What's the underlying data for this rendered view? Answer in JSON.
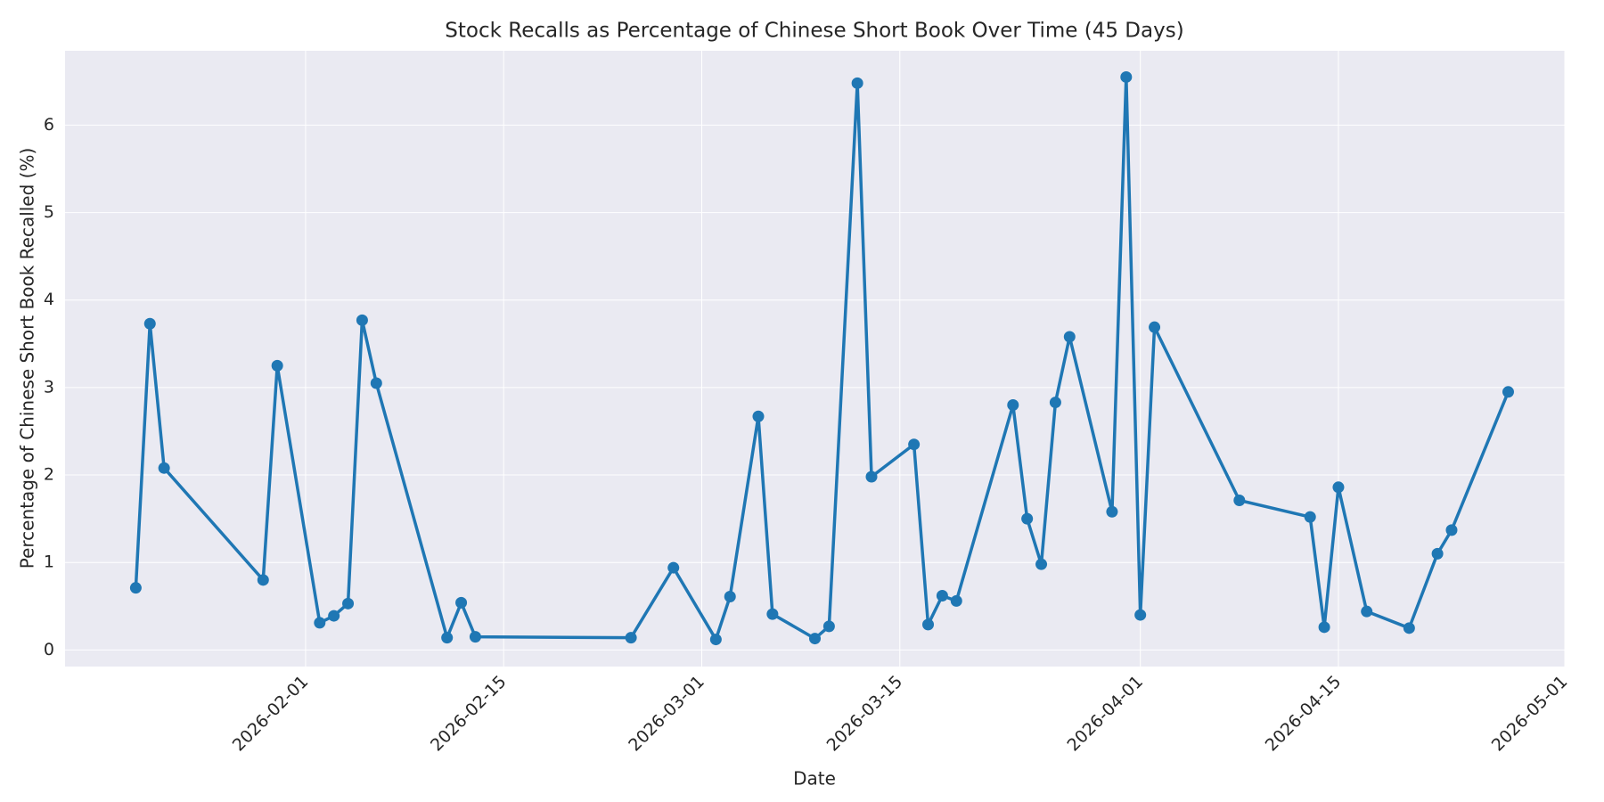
{
  "chart_data": {
    "type": "line",
    "title": "Stock Recalls as Percentage of Chinese Short Book Over Time (45 Days)",
    "x_label": "Date",
    "y_label": "Percentage of Chinese Short Book Recalled (%)",
    "x": [
      "2026-01-20",
      "2026-01-21",
      "2026-01-22",
      "2026-01-29",
      "2026-01-30",
      "2026-02-02",
      "2026-02-03",
      "2026-02-04",
      "2026-02-05",
      "2026-02-06",
      "2026-02-11",
      "2026-02-12",
      "2026-02-13",
      "2026-02-24",
      "2026-02-27",
      "2026-03-02",
      "2026-03-03",
      "2026-03-05",
      "2026-03-06",
      "2026-03-09",
      "2026-03-10",
      "2026-03-12",
      "2026-03-13",
      "2026-03-16",
      "2026-03-17",
      "2026-03-18",
      "2026-03-19",
      "2026-03-23",
      "2026-03-24",
      "2026-03-25",
      "2026-03-26",
      "2026-03-27",
      "2026-03-30",
      "2026-03-31",
      "2026-04-01",
      "2026-04-02",
      "2026-04-08",
      "2026-04-13",
      "2026-04-14",
      "2026-04-15",
      "2026-04-17",
      "2026-04-20",
      "2026-04-22",
      "2026-04-23",
      "2026-04-27"
    ],
    "series": [
      {
        "color": "#1f77b4",
        "values": [
          0.71,
          3.73,
          2.08,
          0.8,
          3.25,
          0.31,
          0.39,
          0.53,
          3.77,
          3.05,
          0.14,
          0.54,
          0.15,
          0.14,
          0.94,
          0.12,
          0.61,
          2.67,
          0.41,
          0.13,
          0.27,
          6.48,
          1.98,
          2.35,
          0.29,
          0.62,
          0.56,
          2.8,
          1.5,
          0.98,
          2.83,
          3.58,
          1.58,
          6.55,
          0.4,
          3.69,
          1.71,
          1.52,
          0.26,
          1.86,
          0.44,
          0.25,
          1.1,
          1.37,
          2.95
        ]
      }
    ],
    "xlim": [
      "2026-01-15",
      "2026-05-01"
    ],
    "xticks": [
      "2026-02-01",
      "2026-02-15",
      "2026-03-01",
      "2026-03-15",
      "2026-04-01",
      "2026-04-15",
      "2026-05-01"
    ],
    "ylim": [
      -0.19,
      6.85
    ],
    "yticks": [
      0,
      1,
      2,
      3,
      4,
      5,
      6
    ],
    "grid": true
  }
}
